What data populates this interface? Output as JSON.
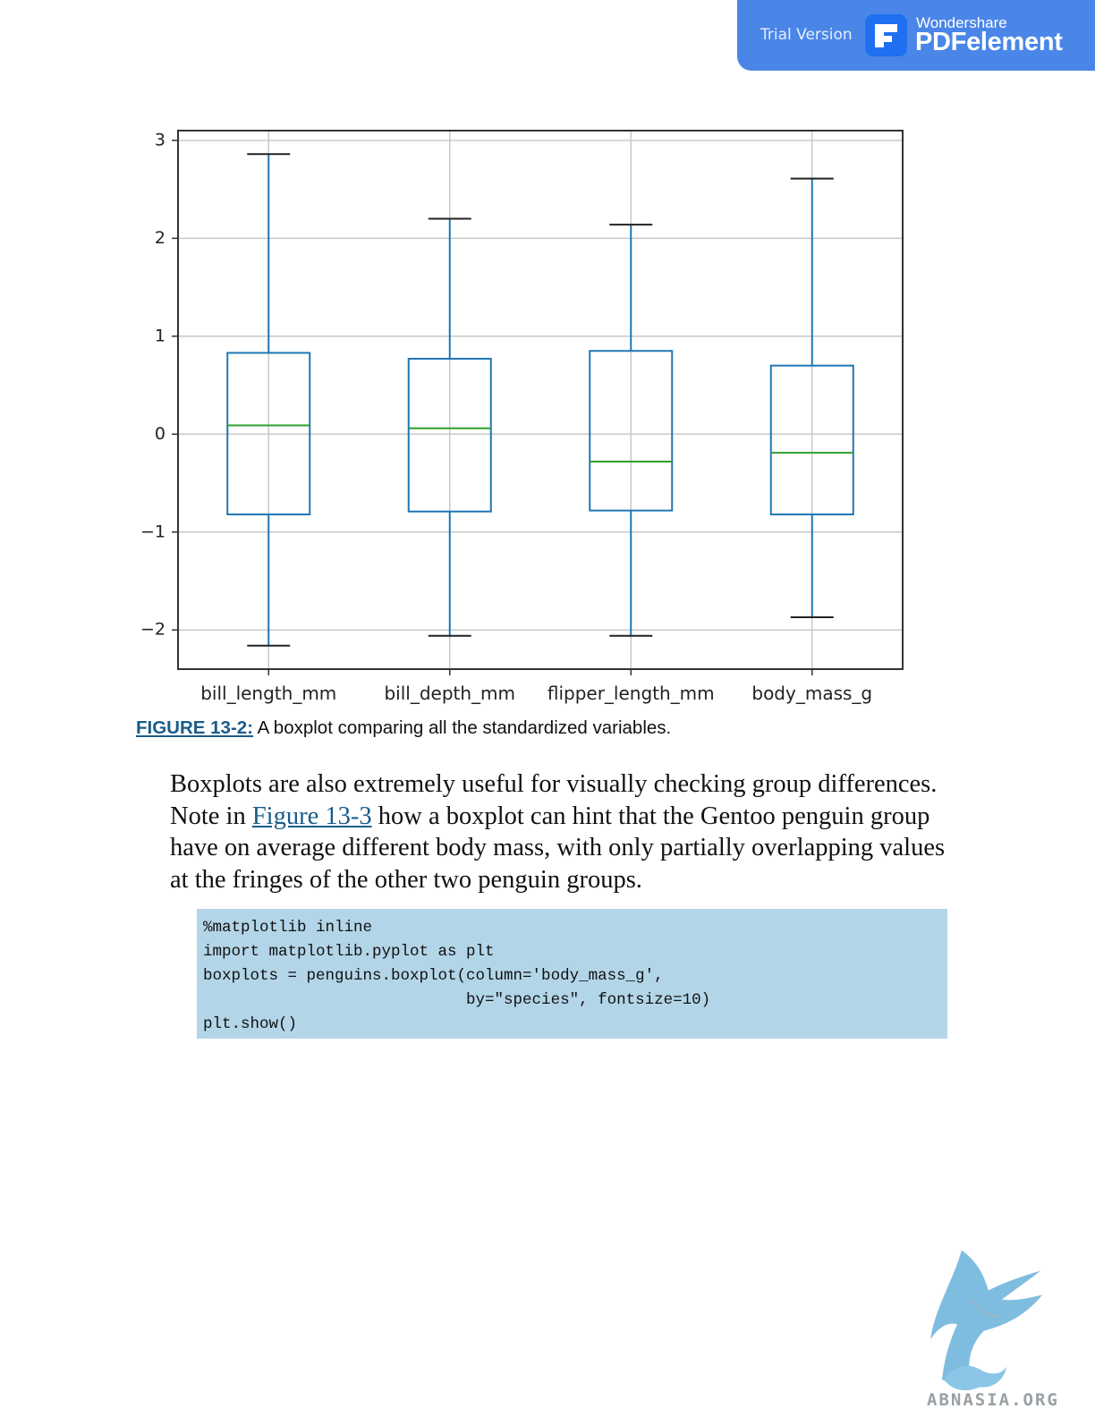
{
  "badge": {
    "trial_label": "Trial Version",
    "brand_top": "Wondershare",
    "brand_main": "PDFelement",
    "color": "#4a86e8"
  },
  "chart_data": {
    "type": "boxplot",
    "title": "",
    "xlabel": "",
    "ylabel": "",
    "ylim": [
      -2.4,
      3.1
    ],
    "y_ticks": [
      3,
      2,
      1,
      0,
      -1,
      -2
    ],
    "y_tick_labels": [
      "3",
      "2",
      "1",
      "0",
      "−1",
      "−2"
    ],
    "grid": true,
    "box_color": "#1f77b4",
    "median_color": "#2ca02c",
    "categories": [
      "bill_length_mm",
      "bill_depth_mm",
      "flipper_length_mm",
      "body_mass_g"
    ],
    "boxes": [
      {
        "whisker_low": -2.16,
        "q1": -0.82,
        "median": 0.09,
        "q3": 0.83,
        "whisker_high": 2.86
      },
      {
        "whisker_low": -2.06,
        "q1": -0.79,
        "median": 0.06,
        "q3": 0.77,
        "whisker_high": 2.2
      },
      {
        "whisker_low": -2.06,
        "q1": -0.78,
        "median": -0.28,
        "q3": 0.85,
        "whisker_high": 2.14
      },
      {
        "whisker_low": -1.87,
        "q1": -0.82,
        "median": -0.19,
        "q3": 0.7,
        "whisker_high": 2.61
      }
    ]
  },
  "caption": {
    "label": "FIGURE 13-2:",
    "text": " A boxplot comparing all the standardized variables."
  },
  "paragraph": {
    "part1": "Boxplots are also extremely useful for visually checking group differences. Note in ",
    "link": "Figure 13-3",
    "part2": " how a boxplot can hint that the Gentoo penguin group have on average different body mass, with only partially overlapping values at the fringes of the other two penguin groups."
  },
  "code": {
    "lines": [
      "%matplotlib inline",
      "import matplotlib.pyplot as plt",
      "boxplots = penguins.boxplot(column='body_mass_g',",
      "                            by=\"species\", fontsize=10)",
      "plt.show()"
    ],
    "background": "#b3d5e8"
  },
  "watermark": {
    "text": "ABNASIA.ORG",
    "icon": "griffin-logo-icon"
  }
}
